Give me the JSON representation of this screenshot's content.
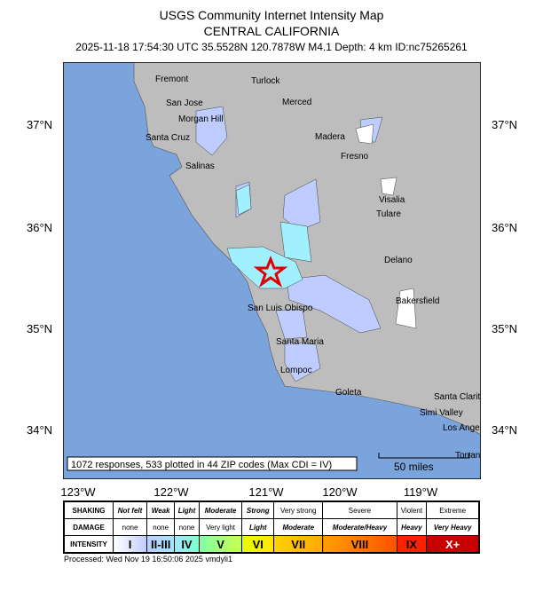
{
  "header": {
    "title": "USGS Community Internet Intensity Map",
    "region": "CENTRAL CALIFORNIA",
    "event": "2025-11-18 17:54:30 UTC 35.5528N 120.7878W M4.1 Depth: 4 km ID:nc75265261"
  },
  "map": {
    "lat_labels": [
      "37°N",
      "36°N",
      "35°N",
      "34°N"
    ],
    "lon_labels": [
      "123°W",
      "122°W",
      "121°W",
      "120°W",
      "119°W"
    ],
    "cities": [
      "Fremont",
      "Turlock",
      "San Jose",
      "Merced",
      "Morgan Hill",
      "Madera",
      "Santa Cruz",
      "Fresno",
      "Salinas",
      "Visalia",
      "Tulare",
      "Delano",
      "San Luis Obispo",
      "Bakersfield",
      "Santa Maria",
      "Lompoc",
      "Goleta",
      "Santa Clarita",
      "Simi Valley",
      "Los Angeles",
      "Torrance"
    ],
    "summary": "1072 responses, 533 plotted in 44 ZIP codes (Max CDI = IV)",
    "scale": "50 miles",
    "colors": {
      "ocean": "#7ba3dc",
      "land": "#bdbdbd",
      "cdi_II_III": "#bfccff",
      "cdi_IV": "#a0f0ff",
      "epicenter": "#e00000"
    }
  },
  "legend": {
    "row_labels": [
      "SHAKING",
      "DAMAGE",
      "INTENSITY"
    ],
    "shaking": [
      "Not felt",
      "Weak",
      "Light",
      "Moderate",
      "Strong",
      "Very strong",
      "Severe",
      "Violent",
      "Extreme"
    ],
    "damage": [
      "none",
      "none",
      "none",
      "Very light",
      "Light",
      "Moderate",
      "Moderate/Heavy",
      "Heavy",
      "Very Heavy"
    ],
    "intensity": [
      "I",
      "II-III",
      "IV",
      "V",
      "VI",
      "VII",
      "VIII",
      "IX",
      "X+"
    ],
    "intensity_colors": [
      "#ffffff",
      "#bfccff",
      "#a0e6ff",
      "#80ffaa",
      "#ffff00",
      "#ffc800",
      "#ff9100",
      "#ff0000",
      "#c80000"
    ]
  },
  "footer": {
    "processed": "Processed: Wed Nov 19 16:50:06 2025 vmdyli1"
  }
}
